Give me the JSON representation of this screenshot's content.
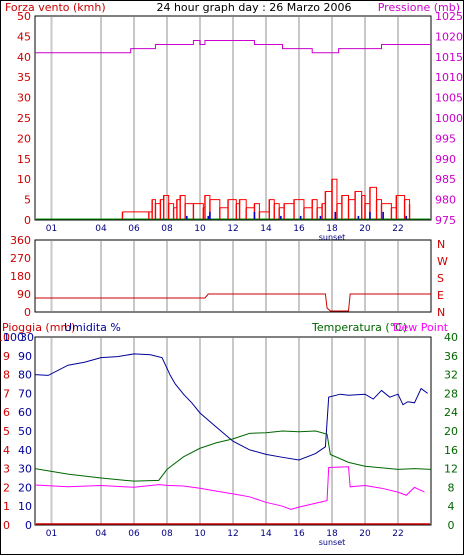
{
  "colors": {
    "wind": "#ff0000",
    "pressure": "#cc00cc",
    "rain": "#cc0000",
    "humidity": "#000099",
    "temperature": "#006600",
    "dewpoint": "#ff00ff",
    "direction": "#cc0000",
    "grid": "#c8c8c8",
    "axis": "#000000",
    "blue_bar": "#0000cc"
  },
  "x_ticks": [
    "01",
    "04",
    "06",
    "08",
    "10",
    "12",
    "14",
    "16",
    "18",
    "20",
    "22"
  ],
  "sunset_label": "sunset",
  "chart_data": [
    {
      "type": "line",
      "title": "24 hour graph day : 26 Marzo 2006",
      "left_label": "Forza vento (kmh)",
      "right_label": "Pressione (mb)",
      "y_left_ticks": [
        "50",
        "45",
        "40",
        "35",
        "30",
        "25",
        "20",
        "15",
        "10",
        "5",
        "0"
      ],
      "y_right_ticks": [
        "1025",
        "1020",
        "1015",
        "1010",
        "1005",
        "1000",
        "995",
        "990",
        "985",
        "980",
        "975"
      ],
      "ylim_left": [
        0,
        50
      ],
      "ylim_right": [
        975,
        1025
      ],
      "grid": "vertical",
      "series": [
        {
          "name": "Pressione (mb)",
          "x": [
            0,
            5.2,
            5.8,
            7.3,
            9.6,
            10.0,
            10.3,
            11.3,
            13.3,
            15.0,
            16.8,
            18.3,
            18.4,
            21.0,
            24
          ],
          "y": [
            1016,
            1016,
            1017,
            1018,
            1019,
            1018,
            1019,
            1019,
            1018,
            1017,
            1016,
            1016,
            1017,
            1018,
            1018
          ]
        },
        {
          "name": "Forza vento (kmh)",
          "x": [
            5.3,
            6.9,
            7.1,
            7.3,
            7.6,
            7.8,
            8.1,
            8.4,
            8.6,
            8.8,
            9.1,
            9.6,
            10.2,
            10.3,
            10.6,
            11.2,
            11.7,
            12.2,
            12.4,
            12.8,
            13.3,
            13.6,
            14.2,
            14.5,
            14.8,
            15.1,
            15.7,
            16.3,
            16.8,
            17.1,
            17.4,
            17.6,
            18.0,
            18.3,
            18.6,
            19.0,
            19.4,
            19.8,
            20.0,
            20.3,
            20.7,
            21.0,
            21.6,
            21.9,
            22.4,
            22.7
          ],
          "y": [
            2,
            2,
            5,
            4,
            5,
            6,
            4,
            3,
            5,
            6,
            4,
            4,
            3,
            6,
            5,
            3,
            5,
            4,
            5,
            3,
            4,
            2,
            5,
            4,
            3,
            4,
            5,
            3,
            5,
            3,
            4,
            7,
            10,
            4,
            6,
            5,
            7,
            6,
            4,
            8,
            5,
            4,
            3,
            6,
            5,
            4
          ]
        },
        {
          "name": "blue",
          "x": [
            9.2,
            10.5,
            10.6,
            13.3,
            14.9,
            16.1,
            17.3,
            18.2,
            19.6,
            20.3,
            21.1,
            22.5
          ],
          "y": [
            1,
            1,
            2,
            2,
            1,
            1,
            1,
            2,
            1,
            2,
            2,
            1
          ]
        }
      ]
    },
    {
      "type": "line",
      "y_left_ticks": [
        "360",
        "270",
        "180",
        "90",
        "0"
      ],
      "y_right_ticks": [
        "N",
        "W",
        "S",
        "E",
        "N"
      ],
      "ylim": [
        0,
        360
      ],
      "series": [
        {
          "name": "direction",
          "x": [
            0,
            10.3,
            10.5,
            17.6,
            17.7,
            17.9,
            19.0,
            19.1,
            24
          ],
          "y": [
            70,
            70,
            90,
            90,
            20,
            5,
            5,
            90,
            90
          ]
        }
      ]
    },
    {
      "type": "line",
      "rain_label": "Pioggia (mm)",
      "humidity_label": "Umidita %",
      "temp_label": "Temperatura (°C)",
      "dew_label": "Dew Point",
      "y_rain_ticks": [
        "10",
        "9",
        "8",
        "7",
        "6",
        "5",
        "4",
        "3",
        "2",
        "1",
        "0"
      ],
      "y_hum_ticks": [
        "100",
        "90",
        "80",
        "70",
        "60",
        "50",
        "40",
        "30",
        "20",
        "10",
        "0"
      ],
      "hum_top_tick": "30",
      "y_temp_ticks": [
        "40",
        "36",
        "32",
        "28",
        "24",
        "20",
        "16",
        "12",
        "8",
        "4",
        "0"
      ],
      "ylim_humidity": [
        0,
        100
      ],
      "ylim_temperature": [
        0,
        40
      ],
      "series": [
        {
          "name": "Umidita %",
          "x": [
            0,
            0.8,
            2.0,
            3.0,
            4.0,
            5.0,
            6.0,
            7.0,
            7.7,
            8.2,
            8.5,
            9.0,
            9.5,
            10.0,
            11.0,
            12.0,
            13.0,
            14.0,
            15.0,
            16.0,
            17.0,
            17.6,
            17.8,
            18.5,
            19.0,
            20.0,
            20.5,
            21.0,
            21.5,
            22.0,
            22.3,
            22.6,
            23.0,
            23.4,
            23.8
          ],
          "y": [
            80,
            80,
            85,
            87,
            89,
            90,
            91,
            91,
            89,
            80,
            75,
            70,
            65,
            60,
            52,
            45,
            40,
            38,
            36,
            35,
            38,
            42,
            68,
            70,
            69,
            70,
            67,
            72,
            68,
            70,
            64,
            66,
            65,
            73,
            70
          ]
        },
        {
          "name": "Temperatura (°C)",
          "x": [
            0,
            2,
            4,
            6,
            7.5,
            8.0,
            9.0,
            10.0,
            11.0,
            12.0,
            13.0,
            14.0,
            15.0,
            16.0,
            17.0,
            17.7,
            17.9,
            19.0,
            20.0,
            22.0,
            23.0,
            24
          ],
          "y": [
            12,
            11,
            10,
            9.5,
            9.5,
            12,
            14.5,
            16.5,
            17.5,
            18.5,
            19.5,
            19.8,
            20,
            20,
            20,
            19.5,
            15,
            13.5,
            12.5,
            12,
            12,
            12
          ]
        },
        {
          "name": "Dew Point",
          "x": [
            0,
            2,
            4,
            6,
            7.5,
            8.0,
            9.0,
            10.0,
            11.0,
            12.0,
            13.0,
            14.0,
            15.0,
            15.5,
            16.0,
            17.0,
            17.7,
            17.8,
            19.0,
            19.1,
            20.0,
            21.0,
            22.0,
            22.5,
            23.0,
            23.6
          ],
          "y": [
            8.5,
            8.3,
            8.4,
            8.2,
            8.6,
            8.6,
            8.3,
            8.0,
            7.2,
            6.8,
            6.0,
            5.0,
            4.0,
            3.5,
            3.8,
            4.8,
            5.2,
            12.4,
            12.4,
            8.3,
            8.4,
            8.0,
            7.0,
            6.5,
            8.0,
            7.2
          ]
        },
        {
          "name": "Pioggia (mm)",
          "x": [
            0,
            24
          ],
          "y": [
            0,
            0
          ]
        }
      ]
    }
  ]
}
